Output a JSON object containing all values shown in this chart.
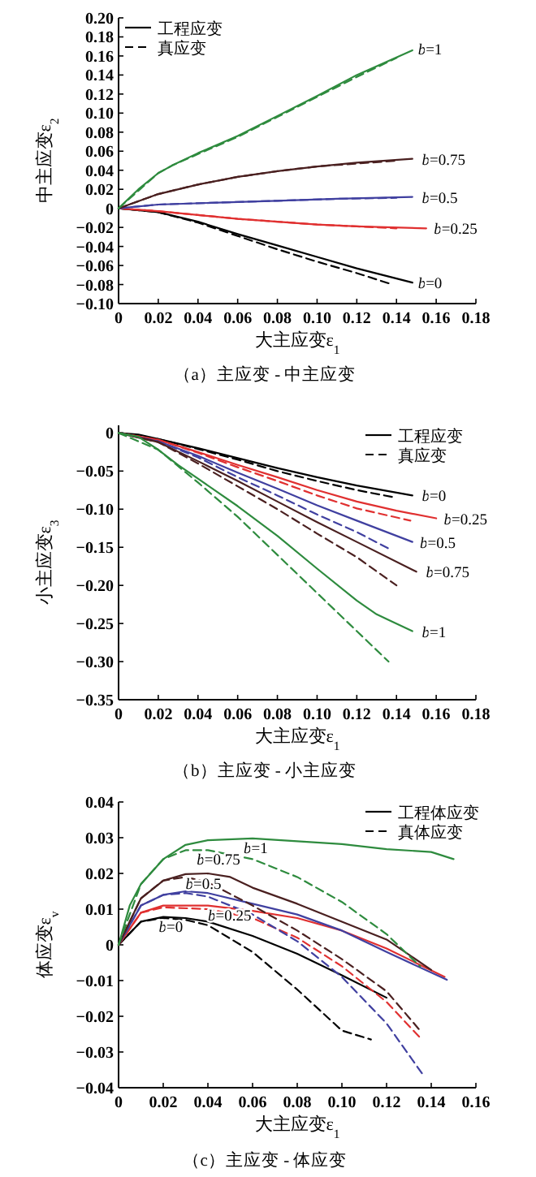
{
  "chart_data": [
    {
      "type": "line",
      "title": "（a）主应变 - 中主应变",
      "xlabel": "大主应变ε$_{1}$",
      "ylabel": "中主应变ε$_{2}$",
      "legend": "top left",
      "xlim": [
        0,
        0.18
      ],
      "ylim": [
        -0.1,
        0.2
      ],
      "xticks": [
        {
          "value": 0,
          "label": "0"
        },
        {
          "value": 0.02,
          "label": "0.02"
        },
        {
          "value": 0.04,
          "label": "0.04"
        },
        {
          "value": 0.06,
          "label": "0.06"
        },
        {
          "value": 0.08,
          "label": "0.08"
        },
        {
          "value": 0.1,
          "label": "0.10"
        },
        {
          "value": 0.12,
          "label": "0.12"
        },
        {
          "value": 0.14,
          "label": "0.14"
        },
        {
          "value": 0.16,
          "label": "0.16"
        },
        {
          "value": 0.18,
          "label": "0.18"
        }
      ],
      "yticks": [
        {
          "value": -0.1,
          "label": "−0.10"
        },
        {
          "value": -0.08,
          "label": "−0.08"
        },
        {
          "value": -0.06,
          "label": "−0.06"
        },
        {
          "value": -0.04,
          "label": "−0.04"
        },
        {
          "value": -0.02,
          "label": "−0.02"
        },
        0,
        {
          "value": 0.02,
          "label": "0.02"
        },
        {
          "value": 0.04,
          "label": "0.04"
        },
        {
          "value": 0.06,
          "label": "0.06"
        },
        {
          "value": 0.08,
          "label": "0.08"
        },
        {
          "value": 0.1,
          "label": "0.10"
        },
        {
          "value": 0.12,
          "label": "0.12"
        },
        {
          "value": 0.14,
          "label": "0.14"
        },
        {
          "value": 0.16,
          "label": "0.16"
        },
        {
          "value": 0.18,
          "label": "0.18"
        },
        {
          "value": 0.2,
          "label": "0.20"
        }
      ],
      "series": [
        {
          "name": "工程应变",
          "color": "#000000",
          "line_style": "solid",
          "x": [
            0,
            0.02,
            0.04,
            0.06,
            0.08,
            0.1,
            0.12,
            0.148
          ],
          "values": [
            0,
            -0.004,
            -0.014,
            -0.027,
            -0.039,
            -0.051,
            -0.063,
            -0.078
          ]
        },
        {
          "name": "真应变",
          "color": "#000000",
          "line_style": "dashed",
          "x": [
            0,
            0.02,
            0.04,
            0.06,
            0.08,
            0.1,
            0.12,
            0.138
          ],
          "values": [
            0,
            -0.004,
            -0.015,
            -0.029,
            -0.043,
            -0.056,
            -0.068,
            -0.08
          ]
        },
        {
          "color": "#e03030",
          "line_style": "solid",
          "x": [
            0,
            0.02,
            0.04,
            0.06,
            0.08,
            0.1,
            0.12,
            0.155
          ],
          "values": [
            0,
            -0.003,
            -0.007,
            -0.011,
            -0.014,
            -0.017,
            -0.019,
            -0.021
          ]
        },
        {
          "color": "#e03030",
          "line_style": "dashed",
          "x": [
            0,
            0.02,
            0.04,
            0.06,
            0.08,
            0.1,
            0.12,
            0.14
          ],
          "values": [
            0,
            -0.003,
            -0.007,
            -0.011,
            -0.014,
            -0.017,
            -0.019,
            -0.021
          ]
        },
        {
          "color": "#4040a0",
          "line_style": "solid",
          "x": [
            0,
            0.02,
            0.05,
            0.08,
            0.11,
            0.148
          ],
          "values": [
            0,
            0.004,
            0.006,
            0.008,
            0.01,
            0.012
          ]
        },
        {
          "color": "#4040a0",
          "line_style": "dashed",
          "x": [
            0,
            0.02,
            0.05,
            0.08,
            0.11,
            0.14
          ],
          "values": [
            0,
            0.004,
            0.006,
            0.008,
            0.01,
            0.011
          ]
        },
        {
          "color": "#4a2020",
          "line_style": "solid",
          "x": [
            0,
            0.02,
            0.04,
            0.06,
            0.08,
            0.1,
            0.12,
            0.148
          ],
          "values": [
            0,
            0.015,
            0.025,
            0.033,
            0.039,
            0.044,
            0.048,
            0.052
          ]
        },
        {
          "color": "#4a2020",
          "line_style": "dashed",
          "x": [
            0,
            0.02,
            0.04,
            0.06,
            0.08,
            0.1,
            0.12,
            0.14
          ],
          "values": [
            0,
            0.015,
            0.025,
            0.033,
            0.039,
            0.044,
            0.047,
            0.05
          ]
        },
        {
          "color": "#2e8b3e",
          "line_style": "solid",
          "x": [
            0,
            0.01,
            0.02,
            0.027,
            0.04,
            0.06,
            0.08,
            0.1,
            0.12,
            0.148
          ],
          "values": [
            0,
            0.02,
            0.037,
            0.045,
            0.058,
            0.076,
            0.097,
            0.118,
            0.14,
            0.166
          ]
        },
        {
          "color": "#2e8b3e",
          "line_style": "dashed",
          "x": [
            0,
            0.02,
            0.027,
            0.04,
            0.06,
            0.08,
            0.1,
            0.12,
            0.14
          ],
          "values": [
            0,
            0.037,
            0.045,
            0.057,
            0.075,
            0.096,
            0.117,
            0.138,
            0.158
          ]
        }
      ],
      "annotations": [
        {
          "text": "*b*=1",
          "x": 0.15,
          "y": 0.168
        },
        {
          "text": "*b*=0.75",
          "x": 0.152,
          "y": 0.052
        },
        {
          "text": "*b*=0.5",
          "x": 0.152,
          "y": 0.012
        },
        {
          "text": "*b*=0.25",
          "x": 0.158,
          "y": -0.021
        },
        {
          "text": "*b*=0",
          "x": 0.15,
          "y": -0.078
        }
      ]
    },
    {
      "type": "line",
      "title": "（b）主应变 - 小主应变",
      "xlabel": "大主应变ε$_{1}$",
      "ylabel": "小主应变ε$_{3}$",
      "legend": "top right",
      "xlim": [
        0,
        0.18
      ],
      "ylim": [
        -0.35,
        0.01
      ],
      "xticks": [
        {
          "value": 0,
          "label": "0"
        },
        {
          "value": 0.02,
          "label": "0.02"
        },
        {
          "value": 0.04,
          "label": "0.04"
        },
        {
          "value": 0.06,
          "label": "0.06"
        },
        {
          "value": 0.08,
          "label": "0.08"
        },
        {
          "value": 0.1,
          "label": "0.10"
        },
        {
          "value": 0.12,
          "label": "0.12"
        },
        {
          "value": 0.14,
          "label": "0.14"
        },
        {
          "value": 0.16,
          "label": "0.16"
        },
        {
          "value": 0.18,
          "label": "0.18"
        }
      ],
      "yticks": [
        {
          "value": -0.35,
          "label": "−0.35"
        },
        {
          "value": -0.3,
          "label": "−0.30"
        },
        {
          "value": -0.25,
          "label": "−0.25"
        },
        {
          "value": -0.2,
          "label": "−0.20"
        },
        {
          "value": -0.15,
          "label": "−0.15"
        },
        {
          "value": -0.1,
          "label": "−0.10"
        },
        {
          "value": -0.05,
          "label": "−0.05"
        },
        0
      ],
      "series": [
        {
          "name": "工程应变",
          "color": "#000000",
          "line_style": "solid",
          "x": [
            0,
            0.01,
            0.02,
            0.04,
            0.06,
            0.08,
            0.1,
            0.12,
            0.148
          ],
          "values": [
            0,
            -0.002,
            -0.008,
            -0.02,
            -0.033,
            -0.046,
            -0.058,
            -0.069,
            -0.082
          ]
        },
        {
          "name": "真应变",
          "color": "#000000",
          "line_style": "dashed",
          "x": [
            0,
            0.02,
            0.04,
            0.06,
            0.08,
            0.1,
            0.12,
            0.14
          ],
          "values": [
            0,
            -0.008,
            -0.021,
            -0.035,
            -0.05,
            -0.063,
            -0.075,
            -0.085
          ]
        },
        {
          "color": "#e03030",
          "line_style": "solid",
          "x": [
            0,
            0.02,
            0.04,
            0.06,
            0.08,
            0.1,
            0.12,
            0.14,
            0.16
          ],
          "values": [
            0,
            -0.009,
            -0.025,
            -0.042,
            -0.058,
            -0.075,
            -0.09,
            -0.102,
            -0.112
          ]
        },
        {
          "color": "#e03030",
          "line_style": "dashed",
          "x": [
            0,
            0.02,
            0.04,
            0.06,
            0.08,
            0.1,
            0.12,
            0.147
          ],
          "values": [
            0,
            -0.009,
            -0.026,
            -0.045,
            -0.063,
            -0.082,
            -0.099,
            -0.115
          ]
        },
        {
          "color": "#4040a0",
          "line_style": "solid",
          "x": [
            0,
            0.02,
            0.04,
            0.06,
            0.08,
            0.1,
            0.12,
            0.148
          ],
          "values": [
            0,
            -0.011,
            -0.03,
            -0.052,
            -0.073,
            -0.095,
            -0.115,
            -0.143
          ]
        },
        {
          "color": "#4040a0",
          "line_style": "dashed",
          "x": [
            0,
            0.02,
            0.04,
            0.06,
            0.08,
            0.1,
            0.12,
            0.137
          ],
          "values": [
            0,
            -0.011,
            -0.032,
            -0.058,
            -0.082,
            -0.107,
            -0.13,
            -0.153
          ]
        },
        {
          "color": "#4a2020",
          "line_style": "solid",
          "x": [
            0,
            0.02,
            0.04,
            0.06,
            0.08,
            0.1,
            0.12,
            0.15
          ],
          "values": [
            0,
            -0.012,
            -0.037,
            -0.063,
            -0.09,
            -0.117,
            -0.143,
            -0.182
          ]
        },
        {
          "color": "#4a2020",
          "line_style": "dashed",
          "x": [
            0,
            0.02,
            0.04,
            0.06,
            0.08,
            0.1,
            0.12,
            0.14
          ],
          "values": [
            0,
            -0.012,
            -0.04,
            -0.07,
            -0.1,
            -0.132,
            -0.163,
            -0.2
          ]
        },
        {
          "color": "#2e8b3e",
          "line_style": "solid",
          "x": [
            0,
            0.01,
            0.02,
            0.03,
            0.04,
            0.06,
            0.08,
            0.1,
            0.12,
            0.13,
            0.148
          ],
          "values": [
            0,
            -0.005,
            -0.022,
            -0.042,
            -0.06,
            -0.096,
            -0.135,
            -0.178,
            -0.22,
            -0.238,
            -0.26
          ]
        },
        {
          "color": "#2e8b3e",
          "line_style": "dashed",
          "x": [
            0,
            0.02,
            0.04,
            0.06,
            0.08,
            0.1,
            0.12,
            0.136
          ],
          "values": [
            0,
            -0.022,
            -0.065,
            -0.11,
            -0.16,
            -0.21,
            -0.26,
            -0.3
          ]
        }
      ],
      "annotations": [
        {
          "text": "*b*=0",
          "x": 0.152,
          "y": -0.082
        },
        {
          "text": "*b*=0.25",
          "x": 0.163,
          "y": -0.112
        },
        {
          "text": "*b*=0.5",
          "x": 0.151,
          "y": -0.143
        },
        {
          "text": "*b*=0.75",
          "x": 0.154,
          "y": -0.182
        },
        {
          "text": "*b*=1",
          "x": 0.152,
          "y": -0.26
        }
      ]
    },
    {
      "type": "line",
      "title": "（c）主应变 - 体应变",
      "xlabel": "大主应变ε$_{1}$",
      "ylabel": "体应变ε$_{v}$",
      "legend": "top right",
      "xlim": [
        0,
        0.16
      ],
      "ylim": [
        -0.04,
        0.04
      ],
      "xticks": [
        {
          "value": 0,
          "label": "0"
        },
        {
          "value": 0.02,
          "label": "0.02"
        },
        {
          "value": 0.04,
          "label": "0.04"
        },
        {
          "value": 0.06,
          "label": "0.06"
        },
        {
          "value": 0.08,
          "label": "0.08"
        },
        {
          "value": 0.1,
          "label": "0.10"
        },
        {
          "value": 0.12,
          "label": "0.12"
        },
        {
          "value": 0.14,
          "label": "0.14"
        },
        {
          "value": 0.16,
          "label": "0.16"
        }
      ],
      "yticks": [
        {
          "value": -0.04,
          "label": "−0.04"
        },
        {
          "value": -0.03,
          "label": "−0.03"
        },
        {
          "value": -0.02,
          "label": "−0.02"
        },
        {
          "value": -0.01,
          "label": "−0.01"
        },
        0,
        0.01,
        0.02,
        0.03,
        0.04
      ],
      "series": [
        {
          "name": "工程体应变",
          "color": "#000000",
          "line_style": "solid",
          "x": [
            0,
            0.01,
            0.02,
            0.03,
            0.04,
            0.06,
            0.08,
            0.1,
            0.12
          ],
          "values": [
            0,
            0.0065,
            0.0078,
            0.0075,
            0.0065,
            0.0025,
            -0.0025,
            -0.0085,
            -0.0148
          ]
        },
        {
          "name": "真体应变",
          "color": "#000000",
          "line_style": "dashed",
          "x": [
            0,
            0.01,
            0.02,
            0.03,
            0.04,
            0.06,
            0.08,
            0.1,
            0.113
          ],
          "values": [
            0,
            0.0065,
            0.0075,
            0.007,
            0.0055,
            -0.002,
            -0.0125,
            -0.024,
            -0.0265
          ]
        },
        {
          "color": "#e03030",
          "line_style": "solid",
          "x": [
            0,
            0.01,
            0.02,
            0.04,
            0.06,
            0.08,
            0.1,
            0.12,
            0.146
          ],
          "values": [
            0,
            0.009,
            0.011,
            0.011,
            0.0095,
            0.0075,
            0.004,
            -0.001,
            -0.009
          ]
        },
        {
          "color": "#e03030",
          "line_style": "dashed",
          "x": [
            0,
            0.01,
            0.02,
            0.04,
            0.06,
            0.08,
            0.1,
            0.12,
            0.135
          ],
          "values": [
            0,
            0.009,
            0.0105,
            0.01,
            0.0075,
            0.002,
            -0.006,
            -0.016,
            -0.026
          ]
        },
        {
          "color": "#4040a0",
          "line_style": "solid",
          "x": [
            0,
            0.01,
            0.02,
            0.03,
            0.04,
            0.06,
            0.08,
            0.1,
            0.12,
            0.147
          ],
          "values": [
            0,
            0.011,
            0.014,
            0.015,
            0.0145,
            0.0115,
            0.0085,
            0.004,
            -0.002,
            -0.0098
          ]
        },
        {
          "color": "#4040a0",
          "line_style": "dashed",
          "x": [
            0,
            0.01,
            0.02,
            0.03,
            0.04,
            0.06,
            0.08,
            0.1,
            0.12,
            0.137
          ],
          "values": [
            0,
            0.011,
            0.014,
            0.0145,
            0.0135,
            0.0085,
            0.001,
            -0.009,
            -0.022,
            -0.037
          ]
        },
        {
          "color": "#4a2020",
          "line_style": "solid",
          "x": [
            0,
            0.01,
            0.02,
            0.03,
            0.04,
            0.05,
            0.06,
            0.08,
            0.1,
            0.12,
            0.14
          ],
          "values": [
            0,
            0.013,
            0.018,
            0.0198,
            0.02,
            0.019,
            0.016,
            0.0115,
            0.0065,
            0.0015,
            -0.007
          ]
        },
        {
          "color": "#4a2020",
          "line_style": "dashed",
          "x": [
            0,
            0.01,
            0.02,
            0.03,
            0.04,
            0.06,
            0.08,
            0.1,
            0.12,
            0.135
          ],
          "values": [
            0,
            0.013,
            0.018,
            0.019,
            0.0175,
            0.011,
            0.004,
            -0.004,
            -0.013,
            -0.024
          ]
        },
        {
          "color": "#2e8b3e",
          "line_style": "solid",
          "x": [
            0,
            0.005,
            0.01,
            0.02,
            0.03,
            0.04,
            0.06,
            0.08,
            0.1,
            0.12,
            0.14,
            0.15
          ],
          "values": [
            0,
            0.011,
            0.017,
            0.024,
            0.028,
            0.0293,
            0.0298,
            0.029,
            0.0282,
            0.0268,
            0.026,
            0.024
          ]
        },
        {
          "color": "#2e8b3e",
          "line_style": "dashed",
          "x": [
            0,
            0.01,
            0.02,
            0.03,
            0.04,
            0.06,
            0.08,
            0.1,
            0.12,
            0.135
          ],
          "values": [
            0,
            0.017,
            0.024,
            0.0265,
            0.0265,
            0.024,
            0.019,
            0.012,
            0.003,
            -0.006
          ]
        }
      ],
      "annotations": [
        {
          "text": "*b*=1",
          "x": 0.056,
          "y": 0.0297
        },
        {
          "text": "*b*=0.75",
          "x": 0.035,
          "y": 0.0265
        },
        {
          "text": "*b*=0.5",
          "x": 0.03,
          "y": 0.0198
        },
        {
          "text": "*b*=0.25",
          "x": 0.04,
          "y": 0.011
        },
        {
          "text": "*b*=0",
          "x": 0.018,
          "y": 0.0077
        }
      ]
    }
  ]
}
